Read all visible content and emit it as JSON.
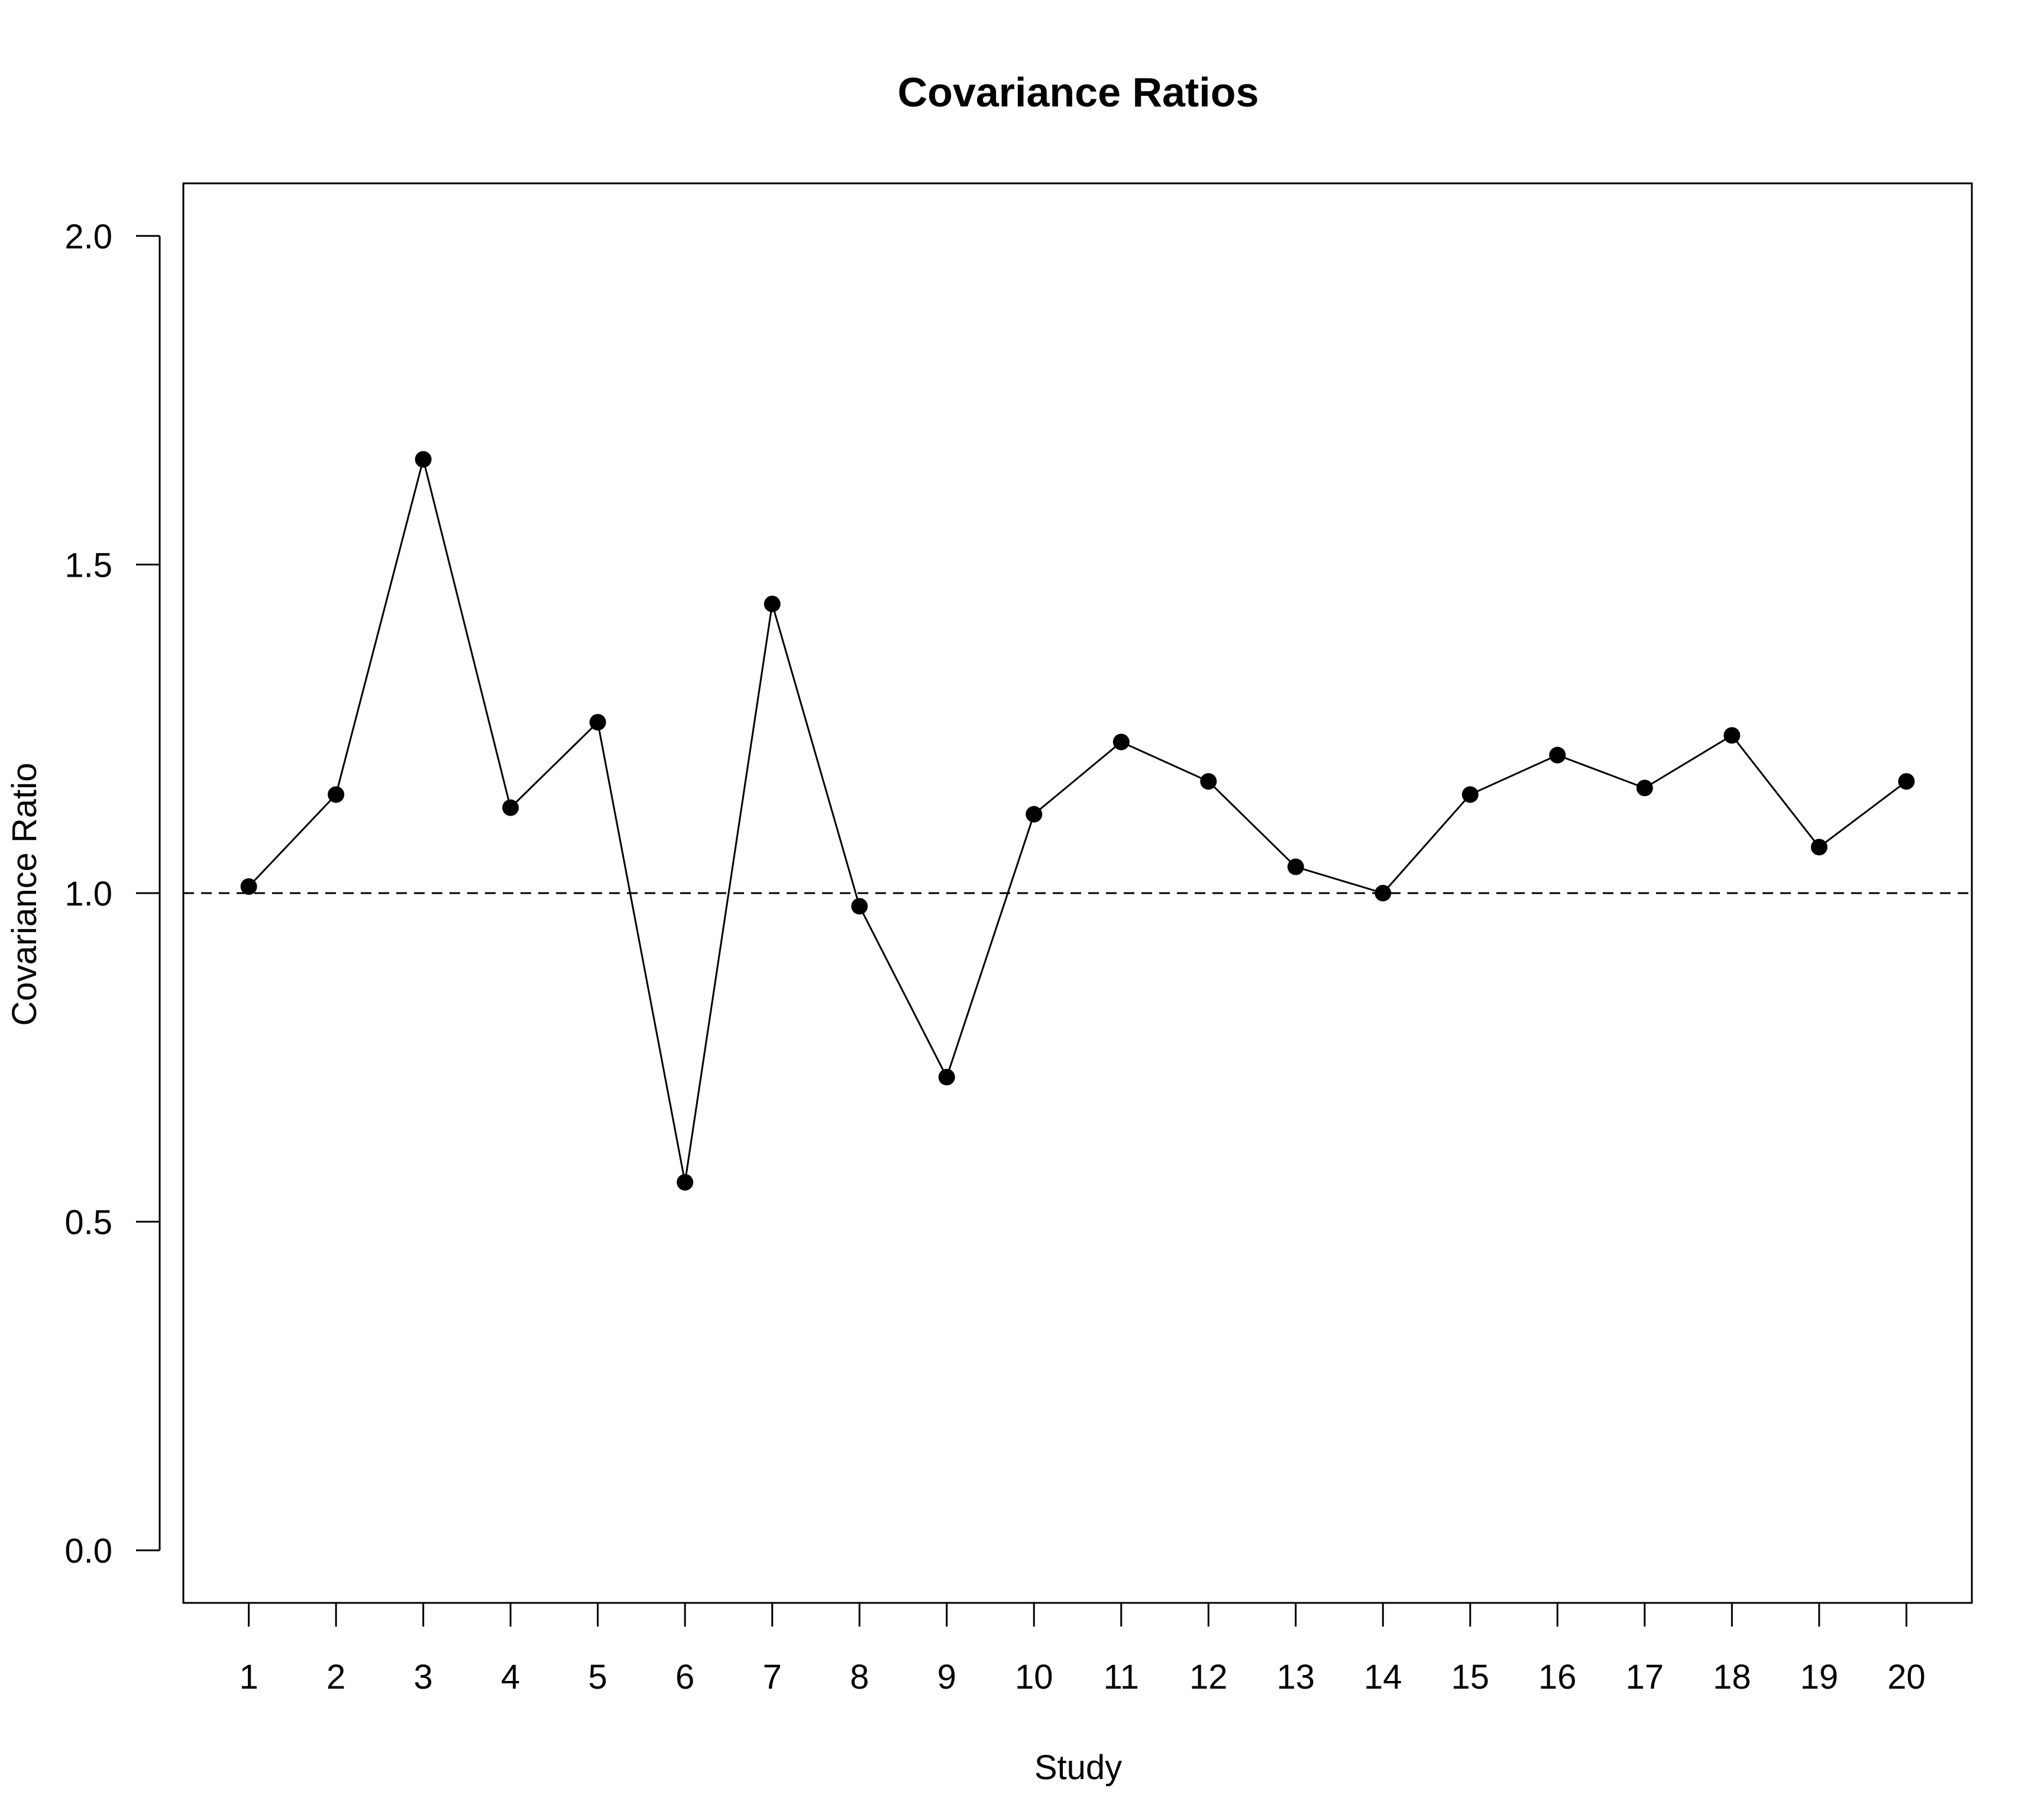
{
  "chart_data": {
    "type": "line",
    "title": "Covariance Ratios",
    "xlabel": "Study",
    "ylabel": "Covariance Ratio",
    "x": [
      1,
      2,
      3,
      4,
      5,
      6,
      7,
      8,
      9,
      10,
      11,
      12,
      13,
      14,
      15,
      16,
      17,
      18,
      19,
      20
    ],
    "x_tick_labels": [
      "1",
      "2",
      "3",
      "4",
      "5",
      "6",
      "7",
      "8",
      "9",
      "10",
      "11",
      "12",
      "13",
      "14",
      "15",
      "16",
      "17",
      "18",
      "19",
      "20"
    ],
    "series": [
      {
        "values": [
          1.01,
          1.15,
          1.66,
          1.13,
          1.26,
          0.56,
          1.44,
          0.98,
          0.72,
          1.12,
          1.23,
          1.17,
          1.04,
          1.0,
          1.15,
          1.21,
          1.16,
          1.24,
          1.07,
          1.17
        ],
        "color": "#000000",
        "marker": "filled-circle"
      }
    ],
    "reference_line": {
      "y": 1.0,
      "style": "dashed",
      "color": "#000000"
    },
    "xlim": [
      0.25,
      20.75
    ],
    "ylim": [
      -0.08,
      2.08
    ],
    "y_ticks": [
      0.0,
      0.5,
      1.0,
      1.5,
      2.0
    ],
    "y_tick_labels": [
      "0.0",
      "0.5",
      "1.0",
      "1.5",
      "2.0"
    ],
    "grid": false,
    "legend": "none"
  }
}
